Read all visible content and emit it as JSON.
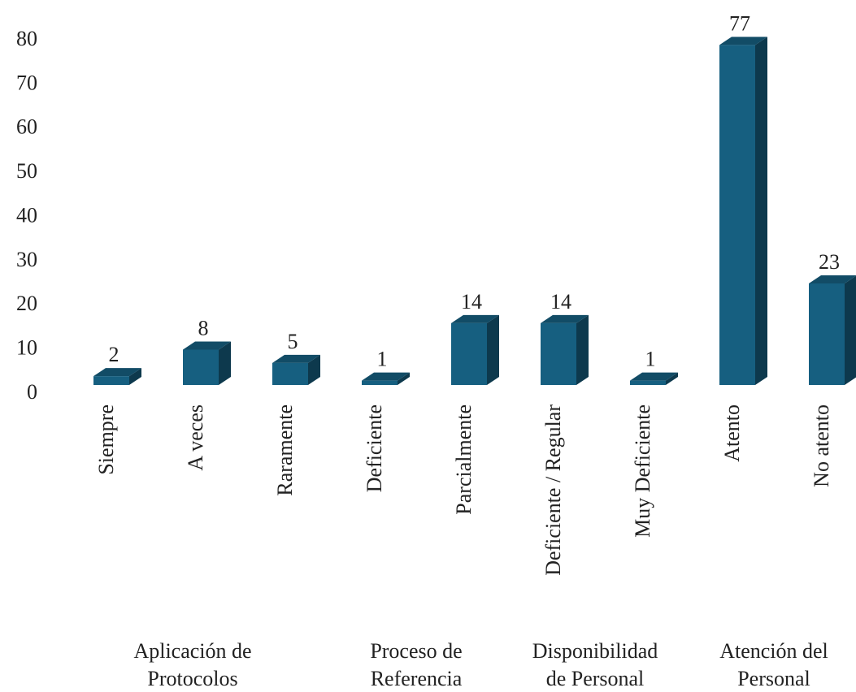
{
  "chart_data": {
    "type": "bar",
    "color": "#165f80",
    "ylim": [
      0,
      80
    ],
    "yticks": [
      0,
      10,
      20,
      30,
      40,
      50,
      60,
      70,
      80
    ],
    "groups": [
      {
        "name": [
          "Aplicación de",
          "Protocolos"
        ],
        "categories": [
          "Siempre",
          "A veces",
          "Raramente"
        ],
        "values": [
          2,
          8,
          5
        ]
      },
      {
        "name": [
          "Proceso de",
          "Referencia"
        ],
        "categories": [
          "Deficiente",
          "Parcialmente"
        ],
        "values": [
          1,
          14
        ]
      },
      {
        "name": [
          "Disponibilidad",
          "de Personal"
        ],
        "categories": [
          "Deficiente / Regular",
          "Muy Deficiente"
        ],
        "values": [
          14,
          1
        ]
      },
      {
        "name": [
          "Atención del",
          "Personal"
        ],
        "categories": [
          "Atento",
          "No atento"
        ],
        "values": [
          77,
          23
        ]
      }
    ]
  }
}
